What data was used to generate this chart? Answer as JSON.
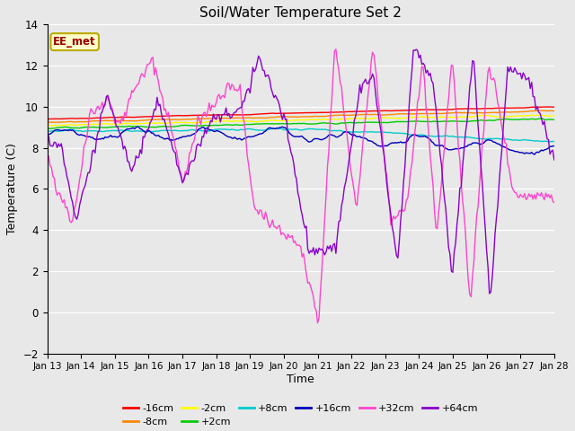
{
  "title": "Soil/Water Temperature Set 2",
  "xlabel": "Time",
  "ylabel": "Temperature (C)",
  "ylim": [
    -2,
    14
  ],
  "yticks": [
    -2,
    0,
    2,
    4,
    6,
    8,
    10,
    12,
    14
  ],
  "x_labels": [
    "Jan 13",
    "Jan 14",
    "Jan 15",
    "Jan 16",
    "Jan 17",
    "Jan 18",
    "Jan 19",
    "Jan 20",
    "Jan 21",
    "Jan 22",
    "Jan 23",
    "Jan 24",
    "Jan 25",
    "Jan 26",
    "Jan 27",
    "Jan 28"
  ],
  "series": [
    {
      "label": "-16cm",
      "color": "#ff0000"
    },
    {
      "label": "-8cm",
      "color": "#ff8800"
    },
    {
      "label": "-2cm",
      "color": "#ffff00"
    },
    {
      "label": "+2cm",
      "color": "#00cc00"
    },
    {
      "label": "+8cm",
      "color": "#00cccc"
    },
    {
      "label": "+16cm",
      "color": "#0000bb"
    },
    {
      "label": "+32cm",
      "color": "#ff44cc"
    },
    {
      "label": "+64cm",
      "color": "#8800cc"
    }
  ],
  "annotation_text": "EE_met",
  "annotation_color": "#990000",
  "annotation_bg": "#ffffcc",
  "annotation_border": "#bbaa00",
  "bg_color": "#e8e8e8",
  "fig_bg": "#e8e8e8"
}
